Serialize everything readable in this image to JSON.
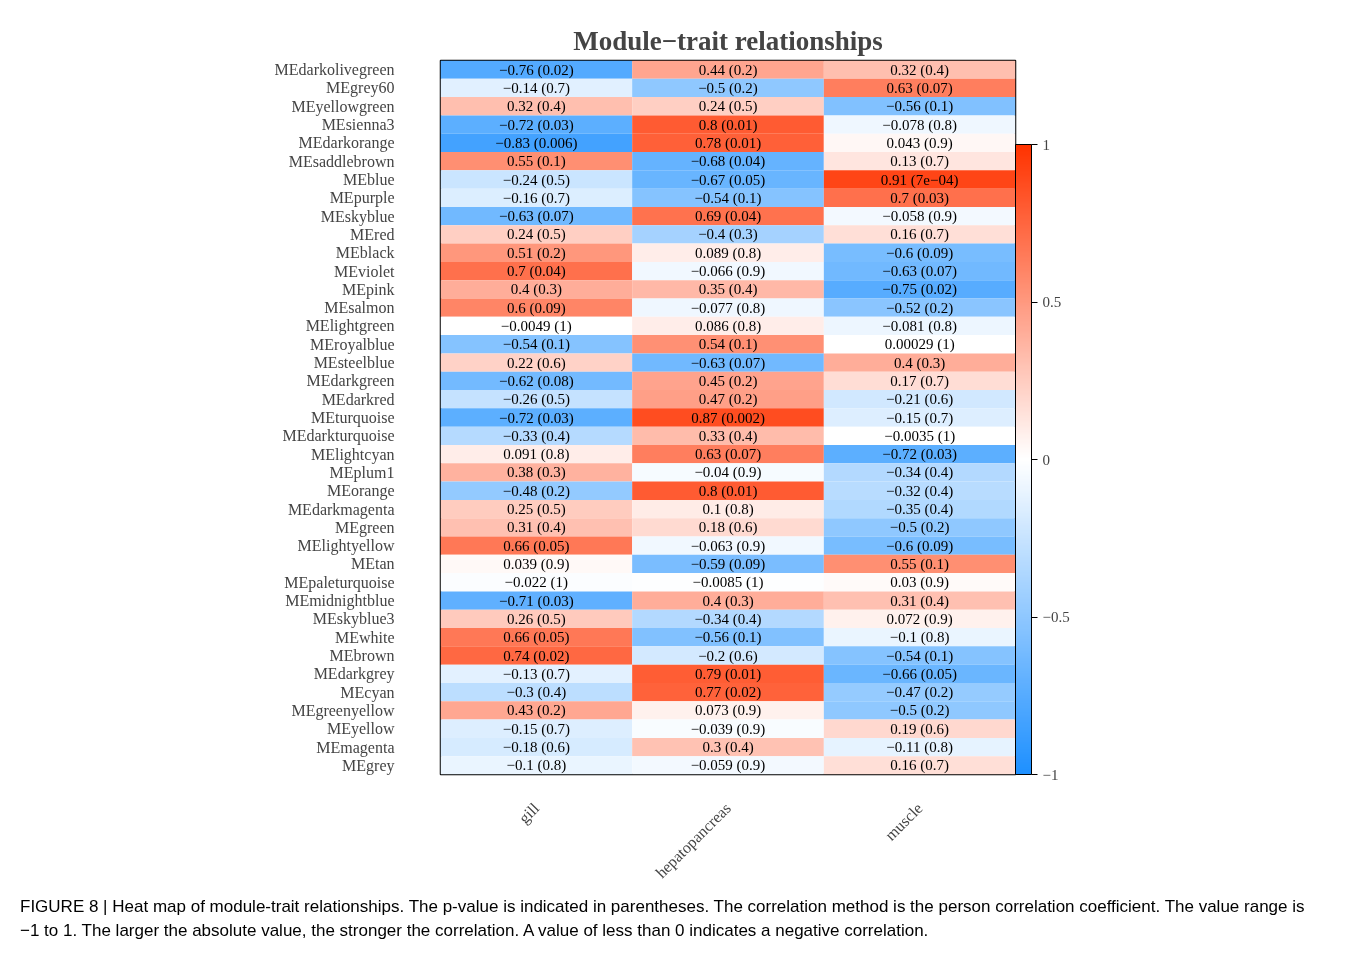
{
  "chart_data": {
    "type": "heatmap",
    "title": "Module−trait relationships",
    "categories": [
      "gill",
      "hepatopancreas",
      "muscle"
    ],
    "y_categories": [
      "MEdarkolivegreen",
      "MEgrey60",
      "MEyellowgreen",
      "MEsienna3",
      "MEdarkorange",
      "MEsaddlebrown",
      "MEblue",
      "MEpurple",
      "MEskyblue",
      "MEred",
      "MEblack",
      "MEviolet",
      "MEpink",
      "MEsalmon",
      "MElightgreen",
      "MEroyalblue",
      "MEsteelblue",
      "MEdarkgreen",
      "MEdarkred",
      "MEturquoise",
      "MEdarkturquoise",
      "MElightcyan",
      "MEplum1",
      "MEorange",
      "MEdarkmagenta",
      "MEgreen",
      "MElightyellow",
      "MEtan",
      "MEpaleturquoise",
      "MEmidnightblue",
      "MEskyblue3",
      "MEwhite",
      "MEbrown",
      "MEdarkgrey",
      "MEcyan",
      "MEgreenyellow",
      "MEyellow",
      "MEmagenta",
      "MEgrey"
    ],
    "cells": [
      [
        -0.76,
        0.44,
        0.32
      ],
      [
        -0.14,
        -0.5,
        0.63
      ],
      [
        0.32,
        0.24,
        -0.56
      ],
      [
        -0.72,
        0.8,
        -0.078
      ],
      [
        -0.83,
        0.78,
        0.043
      ],
      [
        0.55,
        -0.68,
        0.13
      ],
      [
        -0.24,
        -0.67,
        0.91
      ],
      [
        -0.16,
        -0.54,
        0.7
      ],
      [
        -0.63,
        0.69,
        -0.058
      ],
      [
        0.24,
        -0.4,
        0.16
      ],
      [
        0.51,
        0.089,
        -0.6
      ],
      [
        0.7,
        -0.066,
        -0.63
      ],
      [
        0.4,
        0.35,
        -0.75
      ],
      [
        0.6,
        -0.077,
        -0.52
      ],
      [
        -0.0049,
        0.086,
        -0.081
      ],
      [
        -0.54,
        0.54,
        0.00029
      ],
      [
        0.22,
        -0.63,
        0.4
      ],
      [
        -0.62,
        0.45,
        0.17
      ],
      [
        -0.26,
        0.47,
        -0.21
      ],
      [
        -0.72,
        0.87,
        -0.15
      ],
      [
        -0.33,
        0.33,
        -0.0035
      ],
      [
        0.091,
        0.63,
        -0.72
      ],
      [
        0.38,
        -0.04,
        -0.34
      ],
      [
        -0.48,
        0.8,
        -0.32
      ],
      [
        0.25,
        0.1,
        -0.35
      ],
      [
        0.31,
        0.18,
        -0.5
      ],
      [
        0.66,
        -0.063,
        -0.6
      ],
      [
        0.039,
        -0.59,
        0.55
      ],
      [
        -0.022,
        -0.0085,
        0.03
      ],
      [
        -0.71,
        0.4,
        0.31
      ],
      [
        0.26,
        -0.34,
        0.072
      ],
      [
        0.66,
        -0.56,
        -0.1
      ],
      [
        0.74,
        -0.2,
        -0.54
      ],
      [
        -0.13,
        0.79,
        -0.66
      ],
      [
        -0.3,
        0.77,
        -0.47
      ],
      [
        0.43,
        0.073,
        -0.5
      ],
      [
        -0.15,
        -0.039,
        0.19
      ],
      [
        -0.18,
        0.3,
        -0.11
      ],
      [
        -0.1,
        -0.059,
        0.16
      ]
    ],
    "cell_labels": [
      [
        "−0.76 (0.02)",
        "0.44 (0.2)",
        "0.32 (0.4)"
      ],
      [
        "−0.14 (0.7)",
        "−0.5 (0.2)",
        "0.63 (0.07)"
      ],
      [
        "0.32 (0.4)",
        "0.24 (0.5)",
        "−0.56 (0.1)"
      ],
      [
        "−0.72 (0.03)",
        "0.8 (0.01)",
        "−0.078 (0.8)"
      ],
      [
        "−0.83 (0.006)",
        "0.78 (0.01)",
        "0.043 (0.9)"
      ],
      [
        "0.55 (0.1)",
        "−0.68 (0.04)",
        "0.13 (0.7)"
      ],
      [
        "−0.24 (0.5)",
        "−0.67 (0.05)",
        "0.91 (7e−04)"
      ],
      [
        "−0.16 (0.7)",
        "−0.54 (0.1)",
        "0.7 (0.03)"
      ],
      [
        "−0.63 (0.07)",
        "0.69 (0.04)",
        "−0.058 (0.9)"
      ],
      [
        "0.24 (0.5)",
        "−0.4 (0.3)",
        "0.16 (0.7)"
      ],
      [
        "0.51 (0.2)",
        "0.089 (0.8)",
        "−0.6 (0.09)"
      ],
      [
        "0.7 (0.04)",
        "−0.066 (0.9)",
        "−0.63 (0.07)"
      ],
      [
        "0.4 (0.3)",
        "0.35 (0.4)",
        "−0.75 (0.02)"
      ],
      [
        "0.6 (0.09)",
        "−0.077 (0.8)",
        "−0.52 (0.2)"
      ],
      [
        "−0.0049 (1)",
        "0.086 (0.8)",
        "−0.081 (0.8)"
      ],
      [
        "−0.54 (0.1)",
        "0.54 (0.1)",
        "0.00029 (1)"
      ],
      [
        "0.22 (0.6)",
        "−0.63 (0.07)",
        "0.4 (0.3)"
      ],
      [
        "−0.62 (0.08)",
        "0.45 (0.2)",
        "0.17 (0.7)"
      ],
      [
        "−0.26 (0.5)",
        "0.47 (0.2)",
        "−0.21 (0.6)"
      ],
      [
        "−0.72 (0.03)",
        "0.87 (0.002)",
        "−0.15 (0.7)"
      ],
      [
        "−0.33 (0.4)",
        "0.33 (0.4)",
        "−0.0035 (1)"
      ],
      [
        "0.091 (0.8)",
        "0.63 (0.07)",
        "−0.72 (0.03)"
      ],
      [
        "0.38 (0.3)",
        "−0.04 (0.9)",
        "−0.34 (0.4)"
      ],
      [
        "−0.48 (0.2)",
        "0.8 (0.01)",
        "−0.32 (0.4)"
      ],
      [
        "0.25 (0.5)",
        "0.1 (0.8)",
        "−0.35 (0.4)"
      ],
      [
        "0.31 (0.4)",
        "0.18 (0.6)",
        "−0.5 (0.2)"
      ],
      [
        "0.66 (0.05)",
        "−0.063 (0.9)",
        "−0.6 (0.09)"
      ],
      [
        "0.039 (0.9)",
        "−0.59 (0.09)",
        "0.55 (0.1)"
      ],
      [
        "−0.022 (1)",
        "−0.0085 (1)",
        "0.03 (0.9)"
      ],
      [
        "−0.71 (0.03)",
        "0.4 (0.3)",
        "0.31 (0.4)"
      ],
      [
        "0.26 (0.5)",
        "−0.34 (0.4)",
        "0.072 (0.9)"
      ],
      [
        "0.66 (0.05)",
        "−0.56 (0.1)",
        "−0.1 (0.8)"
      ],
      [
        "0.74 (0.02)",
        "−0.2 (0.6)",
        "−0.54 (0.1)"
      ],
      [
        "−0.13 (0.7)",
        "0.79 (0.01)",
        "−0.66 (0.05)"
      ],
      [
        "−0.3 (0.4)",
        "0.77 (0.02)",
        "−0.47 (0.2)"
      ],
      [
        "0.43 (0.2)",
        "0.073 (0.9)",
        "−0.5 (0.2)"
      ],
      [
        "−0.15 (0.7)",
        "−0.039 (0.9)",
        "0.19 (0.6)"
      ],
      [
        "−0.18 (0.6)",
        "0.3 (0.4)",
        "−0.11 (0.8)"
      ],
      [
        "−0.1 (0.8)",
        "−0.059 (0.9)",
        "0.16 (0.7)"
      ]
    ],
    "clim": [
      -1,
      1
    ],
    "cticks": [
      {
        "value": -1,
        "label": "−1"
      },
      {
        "value": -0.5,
        "label": "−0.5"
      },
      0,
      0.5,
      1
    ],
    "annotations": [
      "FIGURE 8 | Heat map of module-trait relationships. The p-value is indicated in parentheses. The correlation method is the person correlation coefficient. The value range is −1 to 1. The larger the absolute value, the stronger the correlation. A value of less than 0 indicates a negative correlation."
    ]
  }
}
